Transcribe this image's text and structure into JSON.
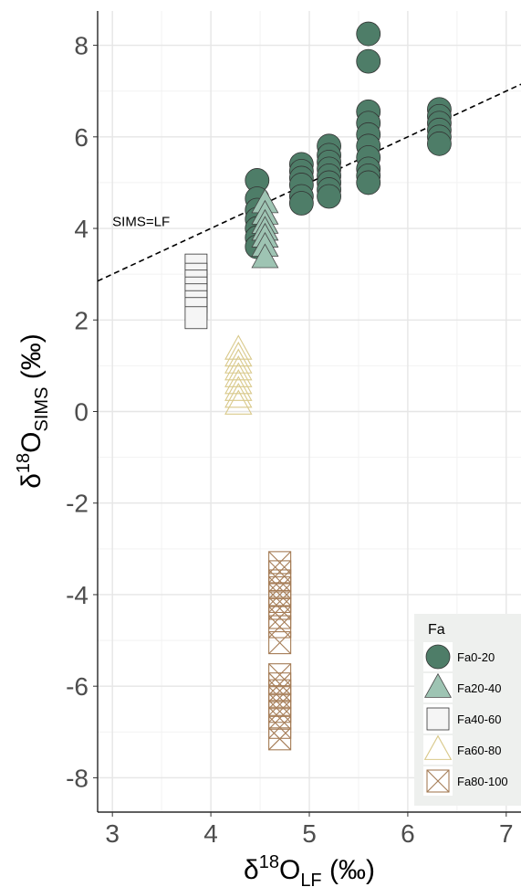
{
  "chart_data": {
    "type": "scatter",
    "xlabel": {
      "prefix": "δ",
      "sup": "18",
      "main": "O",
      "sub": "LF",
      "suffix": " (‰)"
    },
    "ylabel": {
      "prefix": "δ",
      "sup": "18",
      "main": "O",
      "sub": "SIMS",
      "suffix": " (‰)"
    },
    "xlim": [
      2.85,
      7.15
    ],
    "ylim": [
      -8.75,
      8.75
    ],
    "xticks": [
      3,
      4,
      5,
      6,
      7
    ],
    "yticks": [
      -8,
      -6,
      -4,
      -2,
      0,
      2,
      4,
      6,
      8
    ],
    "grid": true,
    "annotation": {
      "text": "SIMS=LF",
      "x": 3.0,
      "y": 4.15
    },
    "reference_line": {
      "label": "SIMS=LF",
      "slope": 1,
      "intercept": 0,
      "style": "dashed"
    },
    "legend": {
      "title": "Fa",
      "placement": "bottom-right"
    },
    "series": [
      {
        "name": "Fa0-20",
        "marker": "circle",
        "fill": "#4e7d68",
        "stroke": "#333333",
        "points": [
          [
            4.47,
            5.05
          ],
          [
            4.47,
            4.65
          ],
          [
            4.47,
            4.4
          ],
          [
            4.47,
            4.2
          ],
          [
            4.47,
            4.0
          ],
          [
            4.47,
            3.8
          ],
          [
            4.47,
            3.6
          ],
          [
            4.92,
            5.4
          ],
          [
            4.92,
            5.25
          ],
          [
            4.92,
            5.1
          ],
          [
            4.92,
            4.95
          ],
          [
            4.92,
            4.7
          ],
          [
            4.92,
            4.55
          ],
          [
            5.2,
            5.8
          ],
          [
            5.2,
            5.6
          ],
          [
            5.2,
            5.45
          ],
          [
            5.2,
            5.3
          ],
          [
            5.2,
            5.15
          ],
          [
            5.2,
            5.0
          ],
          [
            5.2,
            4.85
          ],
          [
            5.2,
            4.7
          ],
          [
            5.6,
            8.25
          ],
          [
            5.6,
            7.65
          ],
          [
            5.6,
            6.55
          ],
          [
            5.6,
            6.3
          ],
          [
            5.6,
            6.05
          ],
          [
            5.6,
            5.8
          ],
          [
            5.6,
            5.55
          ],
          [
            5.6,
            5.3
          ],
          [
            5.6,
            5.15
          ],
          [
            5.6,
            5.0
          ],
          [
            6.32,
            6.6
          ],
          [
            6.32,
            6.45
          ],
          [
            6.32,
            6.3
          ],
          [
            6.32,
            6.15
          ],
          [
            6.32,
            6.0
          ],
          [
            6.32,
            5.85
          ]
        ]
      },
      {
        "name": "Fa20-40",
        "marker": "triangle",
        "fill": "#9ec4b3",
        "stroke": "#444444",
        "points": [
          [
            4.55,
            4.55
          ],
          [
            4.55,
            4.3
          ],
          [
            4.55,
            4.1
          ],
          [
            4.55,
            3.95
          ],
          [
            4.55,
            3.8
          ],
          [
            4.55,
            3.6
          ],
          [
            4.55,
            3.35
          ]
        ]
      },
      {
        "name": "Fa40-60",
        "marker": "square",
        "fill": "#f5f5f5",
        "stroke": "#333333",
        "points": [
          [
            3.85,
            3.2
          ],
          [
            3.85,
            3.0
          ],
          [
            3.85,
            2.85
          ],
          [
            3.85,
            2.7
          ],
          [
            3.85,
            2.55
          ],
          [
            3.85,
            2.4
          ],
          [
            3.85,
            2.25
          ],
          [
            3.85,
            2.05
          ]
        ]
      },
      {
        "name": "Fa60-80",
        "marker": "triangle-open",
        "fill": "none",
        "stroke": "#d9c98b",
        "points": [
          [
            4.28,
            1.35
          ],
          [
            4.28,
            1.2
          ],
          [
            4.28,
            1.05
          ],
          [
            4.28,
            0.9
          ],
          [
            4.28,
            0.75
          ],
          [
            4.28,
            0.6
          ],
          [
            4.28,
            0.45
          ],
          [
            4.28,
            0.3
          ],
          [
            4.28,
            0.15
          ]
        ]
      },
      {
        "name": "Fa80-100",
        "marker": "square-x",
        "fill": "none",
        "stroke": "#a57c56",
        "points": [
          [
            4.7,
            -3.3
          ],
          [
            4.7,
            -3.5
          ],
          [
            4.7,
            -3.7
          ],
          [
            4.7,
            -3.85
          ],
          [
            4.7,
            -4.0
          ],
          [
            4.7,
            -4.15
          ],
          [
            4.7,
            -4.3
          ],
          [
            4.7,
            -4.5
          ],
          [
            4.7,
            -4.7
          ],
          [
            4.7,
            -5.05
          ],
          [
            4.7,
            -5.75
          ],
          [
            4.7,
            -5.95
          ],
          [
            4.7,
            -6.1
          ],
          [
            4.7,
            -6.25
          ],
          [
            4.7,
            -6.4
          ],
          [
            4.7,
            -6.55
          ],
          [
            4.7,
            -6.7
          ],
          [
            4.7,
            -6.9
          ],
          [
            4.7,
            -7.15
          ]
        ]
      }
    ]
  }
}
